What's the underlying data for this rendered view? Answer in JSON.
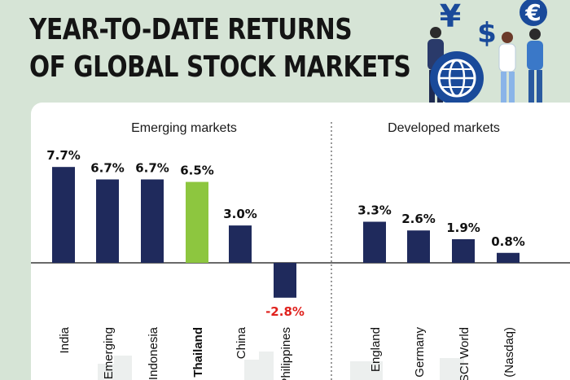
{
  "title_lines": [
    "YEAR-TO-DATE RETURNS",
    "OF GLOBAL STOCK MARKETS"
  ],
  "colors": {
    "background": "#d6e4d6",
    "bar": "#1f2a5c",
    "highlight_bar": "#8dc63f",
    "negative_label": "#e0221e",
    "illustration_blue": "#1a4a9a"
  },
  "icons": [
    "yen-icon",
    "dollar-icon",
    "euro-icon",
    "globe-icon",
    "people-icon",
    "skyline-icon"
  ],
  "chart_data": {
    "type": "bar",
    "groups": [
      {
        "label": "Emerging markets",
        "categories": [
          "India",
          "Emerging",
          "Indonesia",
          "Thailand",
          "China",
          "Philippines"
        ],
        "values": [
          7.7,
          6.7,
          6.7,
          6.5,
          3.0,
          -2.8
        ],
        "labels": [
          "7.7%",
          "6.7%",
          "6.7%",
          "6.5%",
          "3.0%",
          "-2.8%"
        ]
      },
      {
        "label": "Developed markets",
        "categories": [
          "England",
          "Germany",
          "MSCI World",
          "US (Nasdaq)"
        ],
        "values": [
          3.3,
          2.6,
          1.9,
          0.8
        ],
        "labels": [
          "3.3%",
          "2.6%",
          "1.9%",
          "0.8%"
        ]
      }
    ],
    "highlight": "Thailand",
    "unit": "%",
    "ylim": [
      -3.5,
      8.5
    ],
    "grid": false,
    "legend": "none"
  }
}
